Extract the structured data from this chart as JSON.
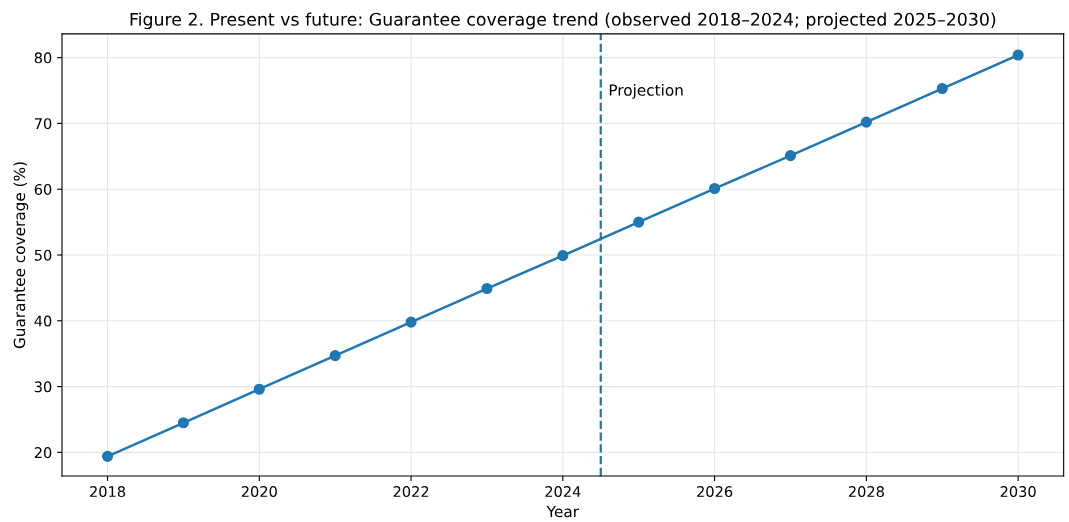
{
  "chart_data": {
    "type": "line",
    "title": "Figure 2. Present vs future: Guarantee coverage trend (observed 2018–2024; projected 2025–2030)",
    "xlabel": "Year",
    "ylabel": "Guarantee coverage (%)",
    "x": [
      2018,
      2019,
      2020,
      2021,
      2022,
      2023,
      2024,
      2025,
      2026,
      2027,
      2028,
      2029,
      2030
    ],
    "series": [
      {
        "color": "#1f77b4",
        "values": [
          19.4,
          24.5,
          29.6,
          34.7,
          39.8,
          44.9,
          49.9,
          55.0,
          60.1,
          65.1,
          70.2,
          75.3,
          80.4
        ]
      }
    ],
    "xlim": [
      2017.4,
      2030.6
    ],
    "xticks": [
      2018,
      2020,
      2022,
      2024,
      2026,
      2028,
      2030
    ],
    "ylim": [
      16.4,
      83.6
    ],
    "yticks": [
      20,
      30,
      40,
      50,
      60,
      70,
      80
    ],
    "ref_lines": [
      {
        "axis": "x",
        "value": 2024.5,
        "label": "Projection",
        "color": "#1f77b4",
        "line_style": "dashed"
      }
    ],
    "grid": true,
    "marker": "circle",
    "line_style": "solid"
  }
}
